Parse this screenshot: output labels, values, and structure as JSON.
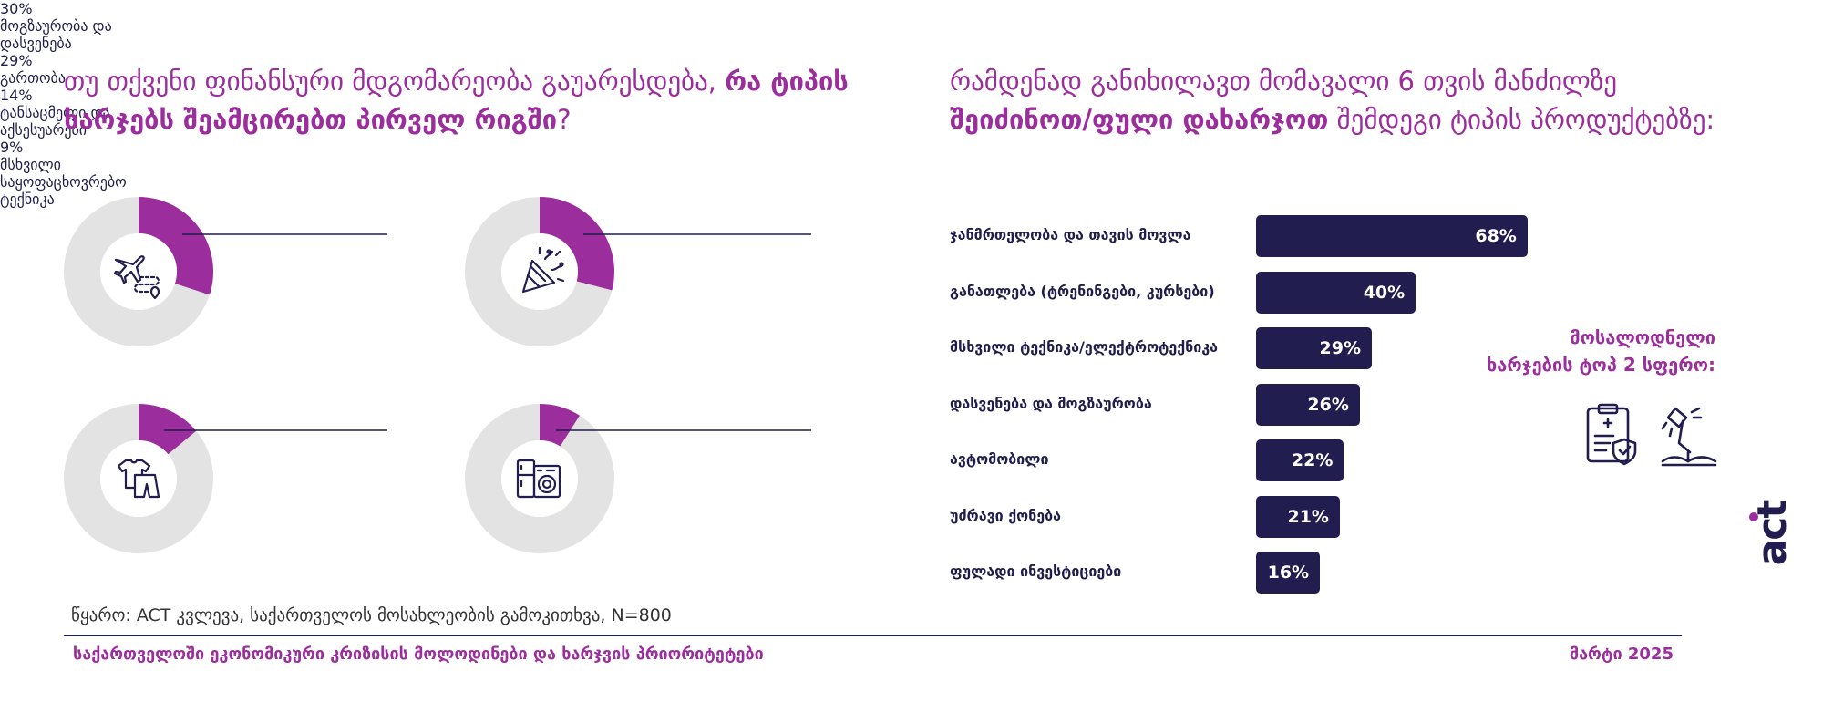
{
  "left_title": {
    "part1": "თუ თქვენი ფინანსური მდგომარეობა გაუარესდება, ",
    "bold": "რა ტიპის ხარჯებს შეამცირებთ პირველ რიგში",
    "part2": "?"
  },
  "right_title": {
    "part1": "რამდენად განიხილავთ მომავალი 6 თვის მანძილზე ",
    "bold": "შეიძინოთ/ფული დახარჯოთ",
    "part2": " შემდეგი ტიპის პროდუქტებზე:"
  },
  "colors": {
    "accent": "#9b2e9c",
    "navy": "#221d4f",
    "track": "#e3e3e3"
  },
  "chart_data": [
    {
      "type": "pie",
      "variant": "donut",
      "slices": [
        {
          "label": "მოგზაურობა და დასვენება",
          "value": 30,
          "pct_text": "30%",
          "icon": "airplane-location-icon"
        },
        {
          "label": "გართობა",
          "value": 29,
          "pct_text": "29%",
          "icon": "party-popper-icon"
        },
        {
          "label": "ტანსაცმელი და აქსესუარები",
          "value": 14,
          "pct_text": "14%",
          "icon": "clothes-icon"
        },
        {
          "label": "მსხვილი საყოფაცხოვრებო ტექნიკა",
          "value": 9,
          "pct_text": "9%",
          "icon": "appliances-icon"
        }
      ]
    },
    {
      "type": "bar",
      "orientation": "horizontal",
      "categories": [
        "ჯანმრთელობა და თავის მოვლა",
        "განათლება (ტრენინგები, კურსები)",
        "მსხვილი ტექნიკა/ელექტროტექნიკა",
        "დასვენება და მოგზაურობა",
        "ავტომობილი",
        "უძრავი ქონება",
        "ფულადი ინვესტიციები"
      ],
      "values": [
        68,
        40,
        29,
        26,
        22,
        21,
        16
      ],
      "value_labels": [
        "68%",
        "40%",
        "29%",
        "26%",
        "22%",
        "21%",
        "16%"
      ]
    }
  ],
  "top2": {
    "title": "მოსალოდნელი\nხარჯების ტოპ 2 სფერო:",
    "icons": [
      "medical-clipboard-icon",
      "desk-lamp-book-icon"
    ]
  },
  "source": "წყარო: ACT კვლევა, საქართველოს მოსახლეობის გამოკითხვა, N=800",
  "footer": {
    "title": "საქართველოში ეკონომიკური კრიზისის მოლოდინები და ხარჯვის პრიორიტეტები",
    "date": "მარტი 2025"
  },
  "logo": "act"
}
